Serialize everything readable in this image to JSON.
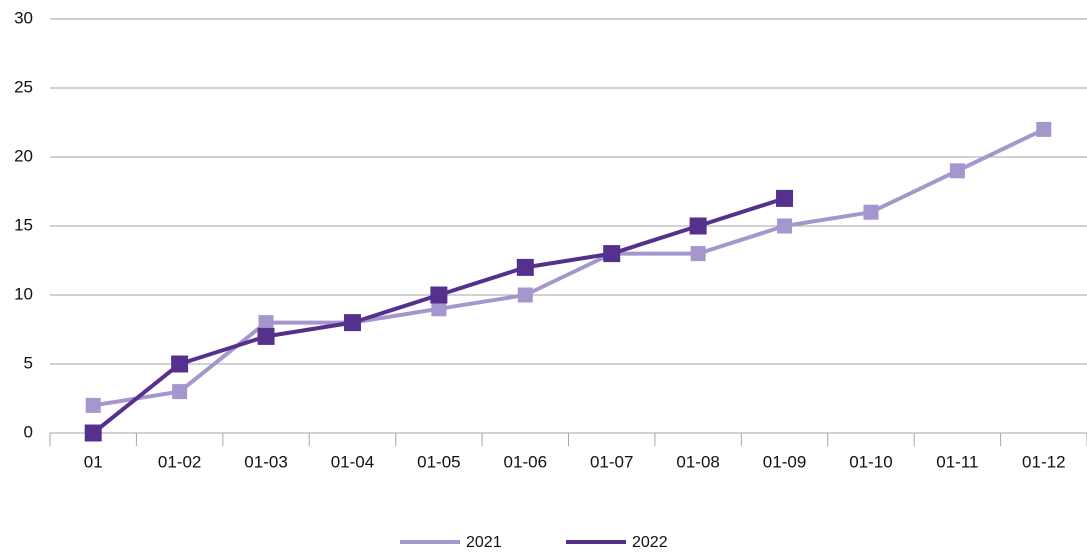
{
  "chart_data": {
    "type": "line",
    "categories": [
      "01",
      "01-02",
      "01-03",
      "01-04",
      "01-05",
      "01-06",
      "01-07",
      "01-08",
      "01-09",
      "01-10",
      "01-11",
      "01-12"
    ],
    "series": [
      {
        "name": "2021",
        "color": "#a597cd",
        "values": [
          2,
          3,
          8,
          8,
          9,
          10,
          13,
          13,
          15,
          16,
          19,
          22
        ]
      },
      {
        "name": "2022",
        "color": "#55308d",
        "values": [
          0,
          5,
          7,
          8,
          10,
          12,
          13,
          15,
          17,
          null,
          null,
          null
        ]
      }
    ],
    "ylim": [
      0,
      30
    ],
    "yticks": [
      0,
      5,
      10,
      15,
      20,
      25,
      30
    ],
    "grid": true,
    "legend": "bottom"
  }
}
